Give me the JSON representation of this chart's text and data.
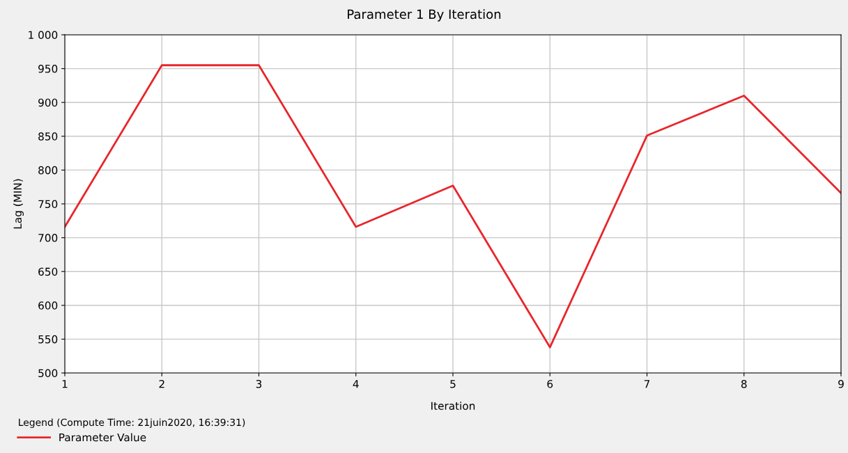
{
  "chart_data": {
    "type": "line",
    "title": "Parameter 1 By Iteration",
    "xlabel": "Iteration",
    "ylabel": "Lag (MIN)",
    "legend_title": "Legend (Compute Time: 21juin2020, 16:39:31)",
    "x": [
      1,
      2,
      3,
      4,
      5,
      6,
      7,
      8,
      9
    ],
    "series": [
      {
        "name": "Parameter Value",
        "color": "#e8262b",
        "values": [
          716,
          955,
          955,
          716,
          777,
          538,
          851,
          910,
          766
        ]
      }
    ],
    "xlim": [
      1,
      9
    ],
    "xticks": [
      1,
      2,
      3,
      4,
      5,
      6,
      7,
      8,
      9
    ],
    "ylim": [
      500,
      1000
    ],
    "yticks": [
      500,
      550,
      600,
      650,
      700,
      750,
      800,
      850,
      900,
      950,
      {
        "value": 1000,
        "label": "1 000"
      }
    ],
    "grid": true,
    "legend": "bottom",
    "marker": "none",
    "line_style": "solid"
  }
}
